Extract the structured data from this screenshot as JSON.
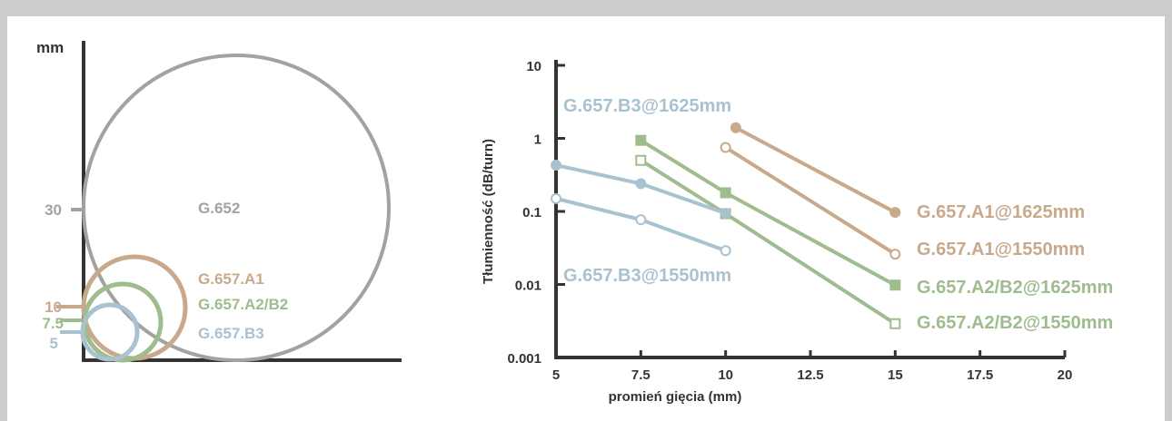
{
  "colors": {
    "g652": "#a2a2a2",
    "a1": "#c8a98c",
    "a2b2": "#9fbc8e",
    "b3": "#a9c2cf",
    "axis": "#333333",
    "background": "#cccccc"
  },
  "chart_data": [
    {
      "type": "diagram",
      "ylabel": "mm",
      "radius_ticks": [
        "30",
        "10",
        "7.5",
        "5"
      ],
      "circles": [
        {
          "name": "G.652",
          "radius_mm": 30
        },
        {
          "name": "G.657.A1",
          "radius_mm": 10
        },
        {
          "name": "G.657.A2/B2",
          "radius_mm": 7.5
        },
        {
          "name": "G.657.B3",
          "radius_mm": 5
        }
      ]
    },
    {
      "type": "line",
      "xlabel": "promień gięcia (mm)",
      "ylabel": "Tłumienność  (dB/turn)",
      "yscale": "log",
      "xlim": [
        5,
        20
      ],
      "ylim": [
        0.001,
        10
      ],
      "xticks": [
        "5",
        "7.5",
        "10",
        "12.5",
        "15",
        "17.5",
        "20"
      ],
      "yticks": [
        "10",
        "1",
        "0.1",
        "0.01",
        "0.001"
      ],
      "series": [
        {
          "name": "G.657.A1@1625mm",
          "color_key": "a1",
          "marker": "circle",
          "filled": true,
          "x": [
            10.3,
            15
          ],
          "y": [
            1.4,
            0.097
          ]
        },
        {
          "name": "G.657.A1@1550mm",
          "color_key": "a1",
          "marker": "circle",
          "filled": false,
          "x": [
            10,
            15
          ],
          "y": [
            0.75,
            0.026
          ]
        },
        {
          "name": "G.657.A2/B2@1625mm",
          "color_key": "a2b2",
          "marker": "square",
          "filled": true,
          "x": [
            7.5,
            10,
            15
          ],
          "y": [
            0.94,
            0.18,
            0.0098
          ]
        },
        {
          "name": "G.657.A2/B2@1550mm",
          "color_key": "a2b2",
          "marker": "square",
          "filled": false,
          "x": [
            7.5,
            10,
            15
          ],
          "y": [
            0.5,
            0.093,
            0.0029
          ]
        },
        {
          "name": "G.657.B3@1625mm",
          "color_key": "b3",
          "marker": "circle",
          "filled": true,
          "x": [
            5,
            7.5,
            10
          ],
          "y": [
            0.43,
            0.24,
            0.094
          ]
        },
        {
          "name": "G.657.B3@1550mm",
          "color_key": "b3",
          "marker": "circle",
          "filled": false,
          "x": [
            5,
            7.5,
            10
          ],
          "y": [
            0.15,
            0.077,
            0.029
          ]
        }
      ]
    }
  ]
}
